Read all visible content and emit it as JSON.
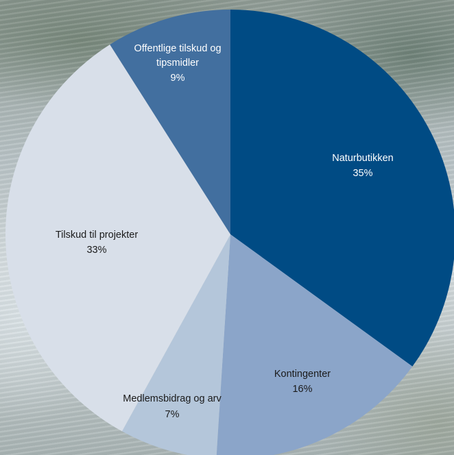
{
  "chart_data": {
    "type": "pie",
    "slices": [
      {
        "label": "Naturbutikken",
        "value": 35,
        "value_label": "35%",
        "color": "#004b84",
        "text_color": "#ffffff"
      },
      {
        "label": "Kontingenter",
        "value": 16,
        "value_label": "16%",
        "color": "#8ba5c9",
        "text_color": "#1a1a1a"
      },
      {
        "label": "Medlemsbidrag og arv",
        "value": 7,
        "value_label": "7%",
        "color": "#b4c6da",
        "text_color": "#1a1a1a"
      },
      {
        "label": "Tilskud til projekter",
        "value": 33,
        "value_label": "33%",
        "color": "#d8dfe9",
        "text_color": "#1a1a1a"
      },
      {
        "label": "Offentlige tilskud og tipsmidler",
        "value": 9,
        "value_label": "9%",
        "color": "#426f9f",
        "text_color": "#ffffff"
      }
    ],
    "start_angle": "12 o'clock",
    "direction": "clockwise",
    "legend": "none"
  }
}
